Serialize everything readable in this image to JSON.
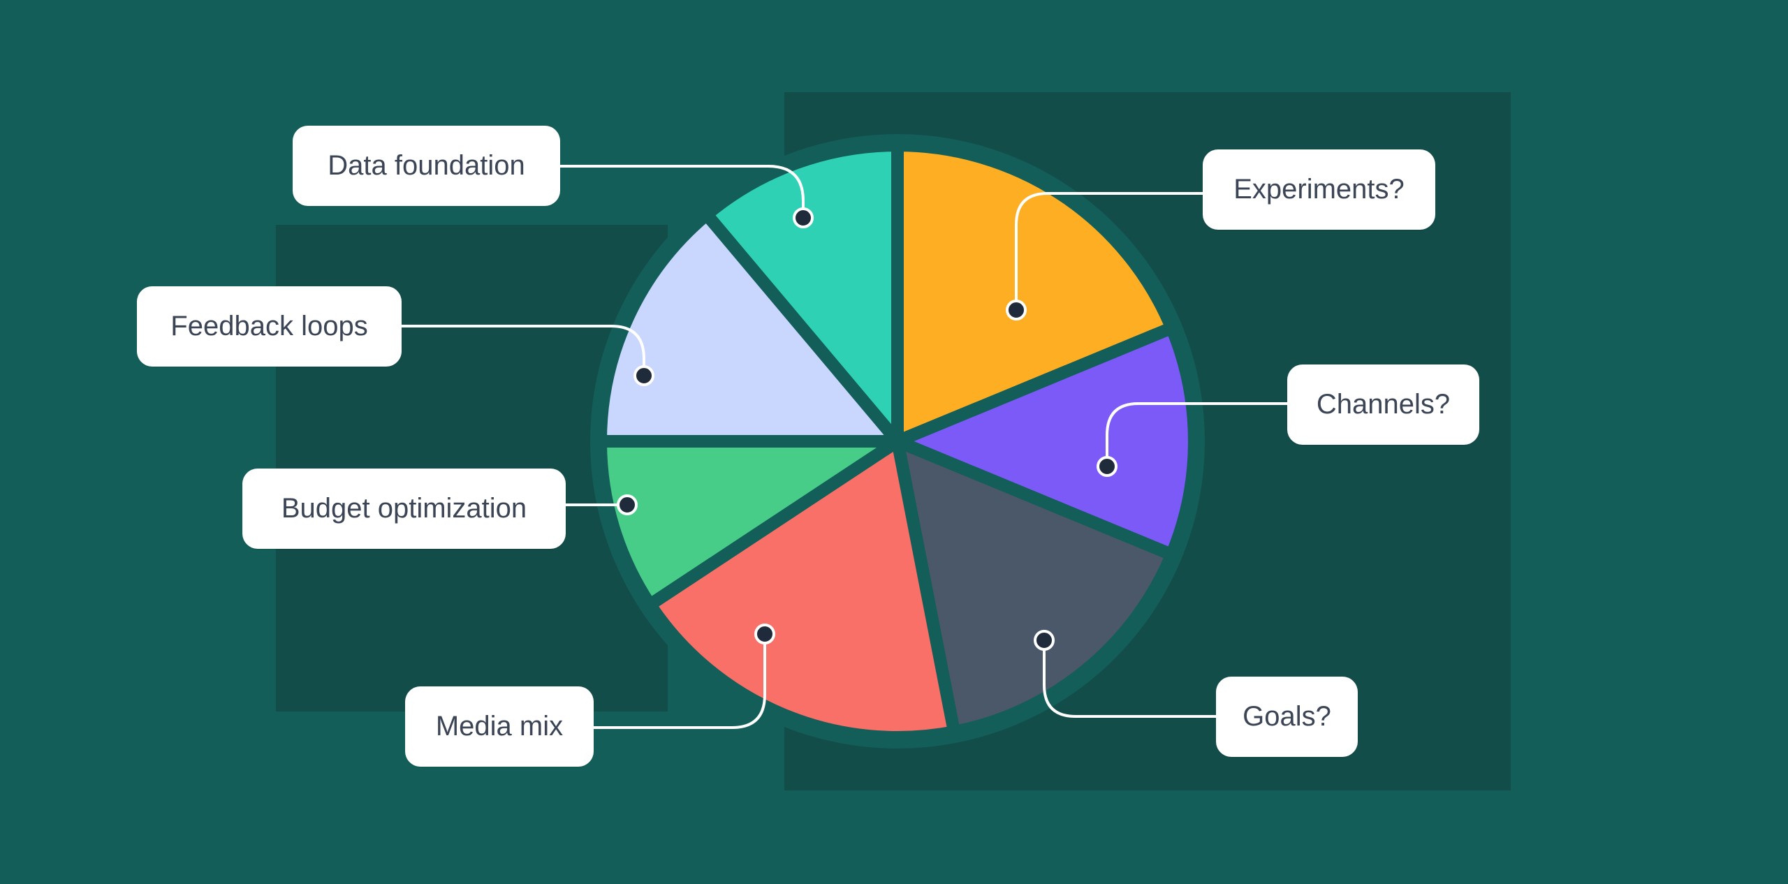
{
  "labels": {
    "data_foundation": "Data foundation",
    "feedback_loops": "Feedback loops",
    "budget_optimization": "Budget optimization",
    "media_mix": "Media mix",
    "experiments": "Experiments?",
    "channels": "Channels?",
    "goals": "Goals?"
  },
  "colors": {
    "background": "#135e58",
    "backdrop": "#134d4a",
    "pie_border": "#135e58",
    "experiments": "#fdae23",
    "channels": "#7c5af8",
    "goals": "#4a5869",
    "media_mix": "#f87068",
    "budget_optimization": "#48cd89",
    "feedback_loops": "#c9d6fe",
    "data_foundation": "#2fd1b4",
    "connector": "#ffffff",
    "marker": "#1f2a3a"
  }
}
